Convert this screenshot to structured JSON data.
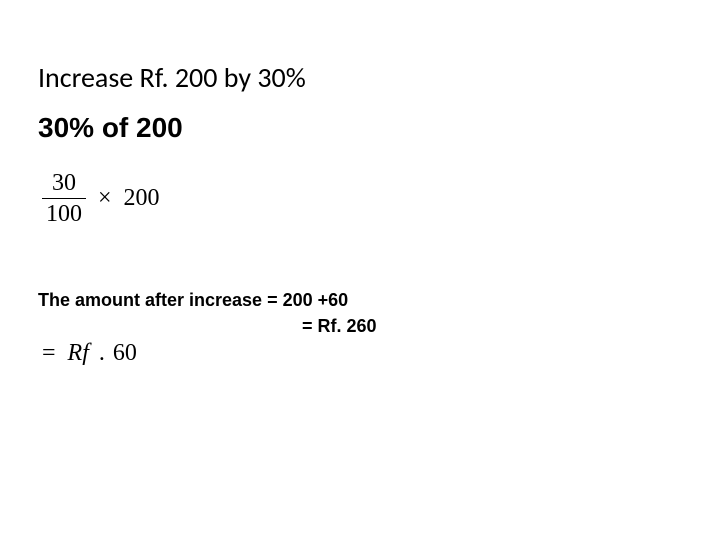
{
  "title": "Increase Rf. 200 by 30%",
  "subtitle": "30% of 200",
  "fraction": {
    "numerator": "30",
    "denominator": "100",
    "times": "×",
    "multiplicand": "200"
  },
  "result": {
    "line1": "The amount after increase = 200 +60",
    "line2": "= Rf. 260"
  },
  "equation": {
    "eq": "=",
    "rf": "Rf",
    "dot": ".",
    "value": "60"
  },
  "colors": {
    "text": "#000000",
    "background": "#ffffff"
  },
  "typography": {
    "title_font": "Calibri",
    "title_size_pt": 21,
    "subtitle_font": "Arial Black",
    "subtitle_size_pt": 21,
    "math_font": "Times New Roman",
    "math_size_pt": 18,
    "result_font": "Arial Black",
    "result_size_pt": 14
  }
}
